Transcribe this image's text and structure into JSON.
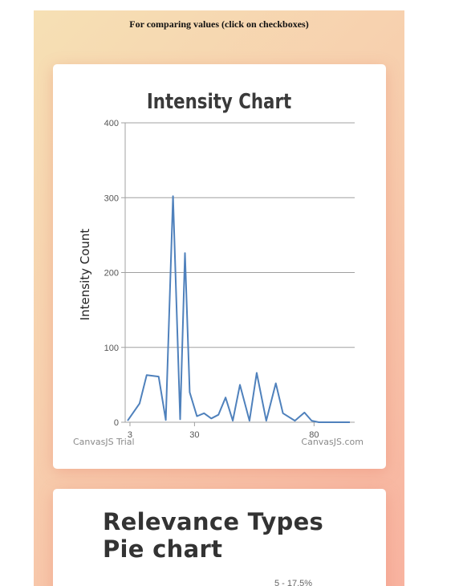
{
  "instructions": "For comparing values (click on checkboxes)",
  "chart_data": {
    "type": "line",
    "title": "Intensity Chart",
    "xlabel": "",
    "ylabel": "Intensity Count",
    "xlim": [
      1,
      97
    ],
    "ylim": [
      0,
      400
    ],
    "x_ticks": [
      3,
      30,
      80
    ],
    "y_ticks": [
      0,
      100,
      200,
      300,
      400
    ],
    "grid": true,
    "color": "#4f81bc",
    "series": [
      {
        "x": [
          2,
          7,
          10,
          15,
          18,
          21,
          24,
          26,
          28,
          31,
          34,
          37,
          40,
          43,
          46,
          49,
          53,
          56,
          60,
          64,
          67,
          72,
          76,
          79,
          82,
          85,
          88,
          92,
          95
        ],
        "values": [
          2,
          25,
          63,
          61,
          3,
          302,
          4,
          226,
          40,
          8,
          12,
          5,
          10,
          33,
          2,
          50,
          2,
          66,
          2,
          52,
          12,
          2,
          13,
          2,
          0,
          0,
          0,
          0,
          0
        ]
      }
    ],
    "watermarks": [
      "CanvasJS Trial",
      "CanvasJS.com"
    ]
  },
  "pie": {
    "title": "Relevance Types Pie chart",
    "visible_label": "5 - 17.5%"
  }
}
